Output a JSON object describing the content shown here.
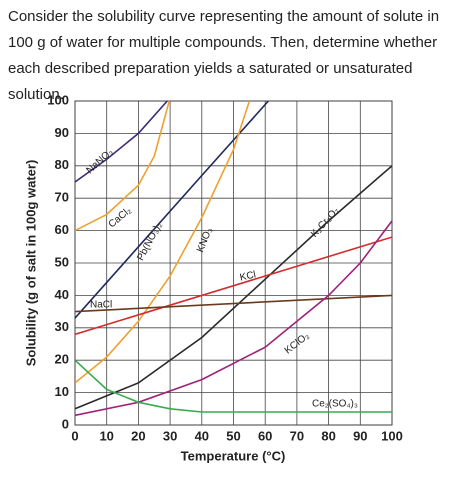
{
  "question": "Consider the solubility curve representing the amount of solute in 100 g of water for multiple compounds. Then, determine whether each described preparation yields a saturated or unsaturated solution.",
  "chart_data": {
    "type": "line",
    "x_label": "Temperature (°C)",
    "y_label": "Solubility (g of salt in 100g water)",
    "xlim": [
      0,
      100
    ],
    "ylim": [
      0,
      100
    ],
    "xticks": [
      0,
      10,
      20,
      30,
      40,
      50,
      60,
      70,
      80,
      90,
      100
    ],
    "yticks": [
      0,
      10,
      20,
      30,
      40,
      50,
      60,
      70,
      80,
      90,
      100
    ],
    "grid": true,
    "series": [
      {
        "name": "NaNO₃",
        "color": "#3d2a78",
        "x": [
          0,
          10,
          20,
          30
        ],
        "values": [
          75,
          82,
          90,
          101
        ]
      },
      {
        "name": "CaCl₂",
        "color": "#f0a030",
        "x": [
          0,
          10,
          20,
          25,
          30
        ],
        "values": [
          60,
          65,
          74,
          83,
          101
        ]
      },
      {
        "name": "Pb(NO₃)₂",
        "color": "#1f2a5a",
        "x": [
          0,
          20,
          40,
          61
        ],
        "values": [
          33,
          55,
          77,
          100
        ]
      },
      {
        "name": "KNO₃",
        "color": "#f0a030",
        "x": [
          0,
          10,
          20,
          30,
          40,
          50,
          55
        ],
        "values": [
          13,
          21,
          32,
          46,
          64,
          85,
          100
        ]
      },
      {
        "name": "K₂Cr₂O₇",
        "color": "#2a2a2a",
        "x": [
          0,
          20,
          40,
          60,
          80,
          100
        ],
        "values": [
          5,
          13,
          27,
          45,
          63,
          80
        ]
      },
      {
        "name": "KCl",
        "color": "#d62b2b",
        "x": [
          0,
          100
        ],
        "values": [
          28,
          58
        ]
      },
      {
        "name": "NaCl",
        "color": "#6b3a1e",
        "x": [
          0,
          100
        ],
        "values": [
          35,
          40
        ]
      },
      {
        "name": "KClO₃",
        "color": "#a0207a",
        "x": [
          0,
          20,
          40,
          60,
          80,
          90,
          100
        ],
        "values": [
          3,
          7,
          14,
          24,
          40,
          50,
          63
        ]
      },
      {
        "name": "Ce₂(SO₄)₃",
        "color": "#3aaa50",
        "x": [
          0,
          10,
          20,
          30,
          40,
          60,
          100
        ],
        "values": [
          20,
          11,
          7,
          5,
          4,
          4,
          4
        ]
      }
    ]
  }
}
